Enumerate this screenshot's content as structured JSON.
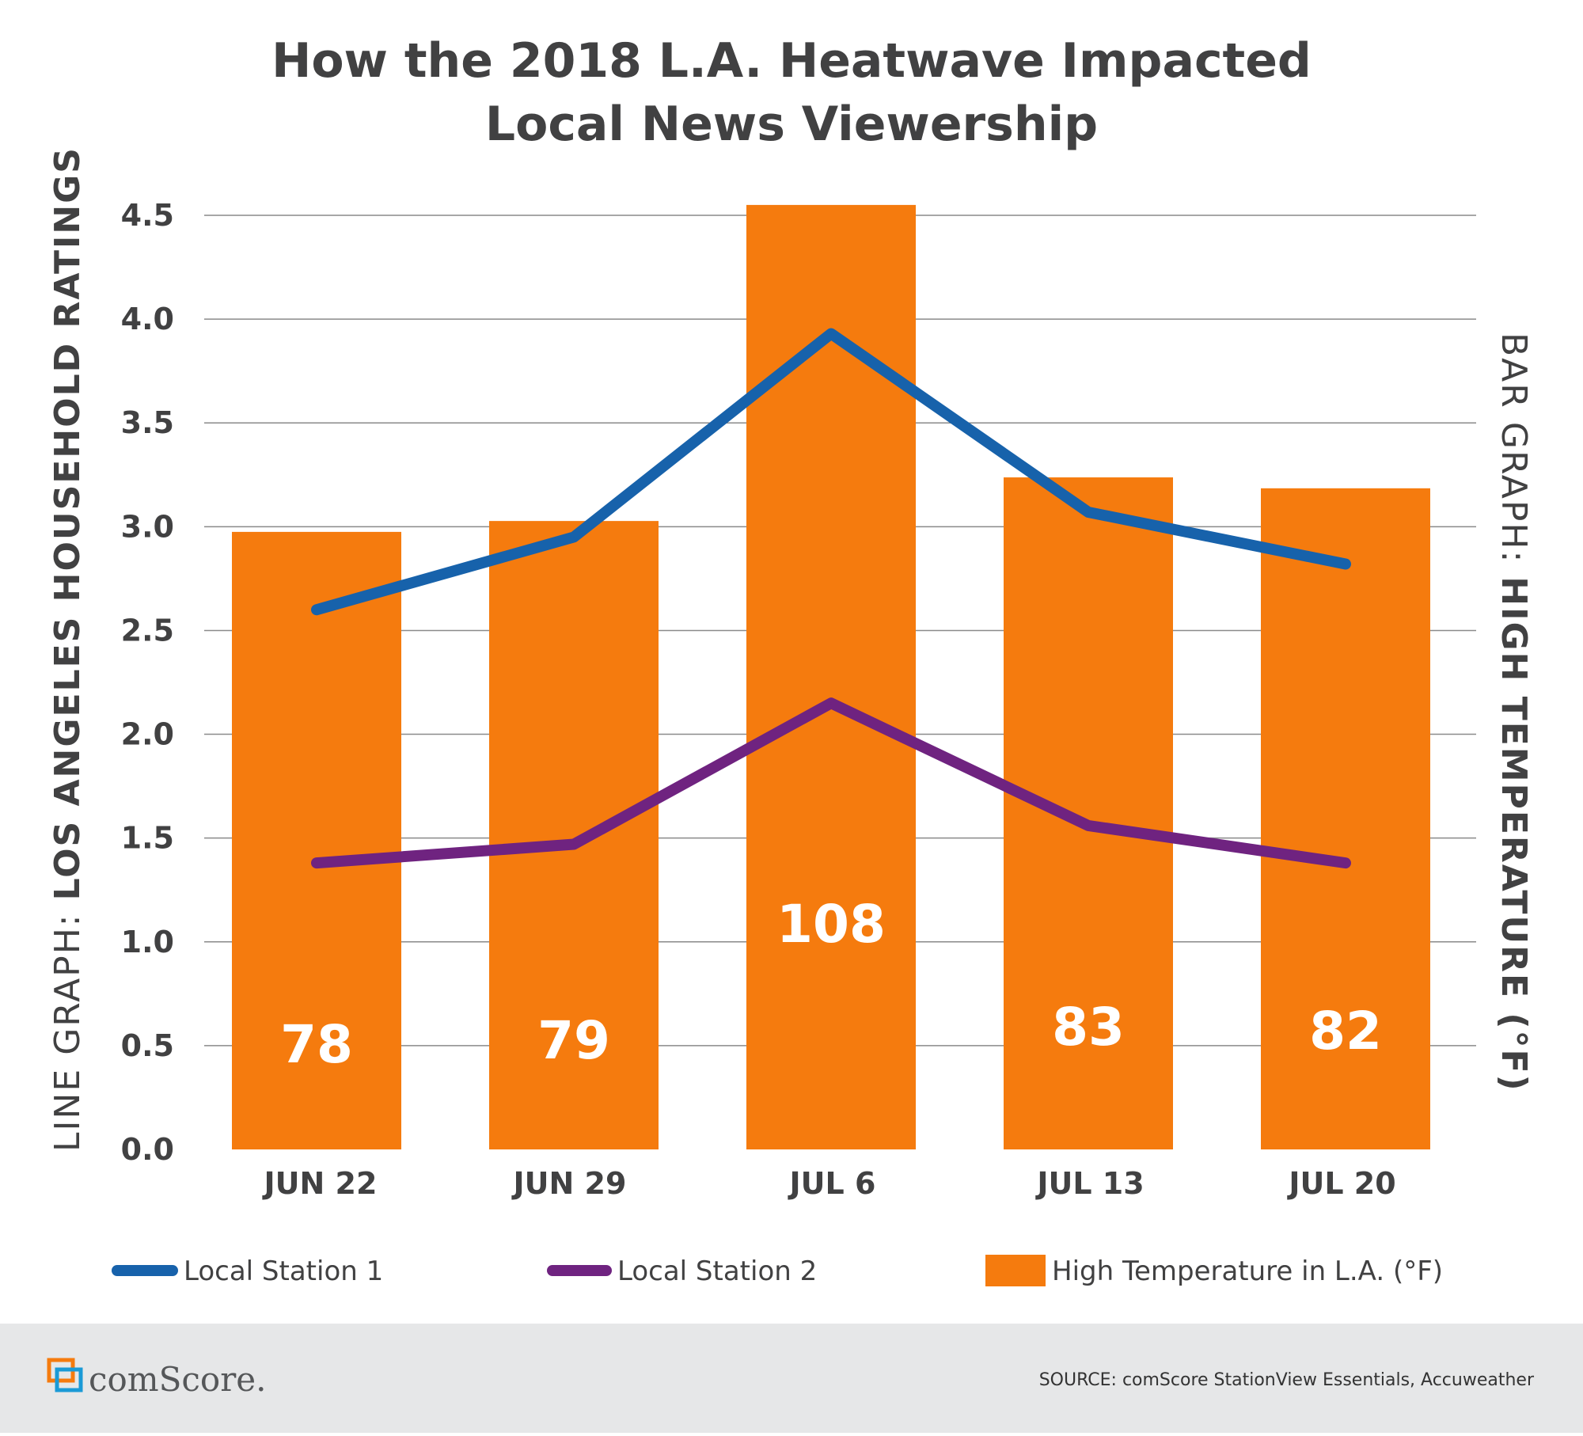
{
  "chart_data": {
    "type": "bar",
    "title_lines": [
      "How the 2018 L.A. Heatwave Impacted",
      "Local News Viewership"
    ],
    "categories": [
      "JUN 22",
      "JUN 29",
      "JUL 6",
      "JUL 13",
      "JUL 20"
    ],
    "bar_series": {
      "name": "High Temperature in L.A. (°F)",
      "values": [
        78,
        79,
        108,
        83,
        82
      ],
      "value_labels": [
        "78",
        "79",
        "108",
        "83",
        "82"
      ],
      "color": "#f57b0e"
    },
    "line_series": [
      {
        "name": "Local Station 1",
        "values": [
          2.6,
          2.95,
          3.93,
          3.07,
          2.82
        ],
        "color": "#1762ab"
      },
      {
        "name": "Local Station 2",
        "values": [
          1.38,
          1.47,
          2.15,
          1.56,
          1.38
        ],
        "color": "#6f2380"
      }
    ],
    "y_left": {
      "min": 0,
      "max": 4.5,
      "ticks": [
        "0.0",
        "0.5",
        "1.0",
        "1.5",
        "2.0",
        "2.5",
        "3.0",
        "3.5",
        "4.0",
        "4.5"
      ],
      "label_prefix": "LINE GRAPH: ",
      "label_main": "LOS ANGELES HOUSEHOLD RATINGS"
    },
    "y_right": {
      "label_prefix": "BAR GRAPH: ",
      "label_main": "HIGH TEMPERATURE (°F)"
    },
    "grid": true,
    "legend_position": "bottom"
  },
  "footer": {
    "brand": "comScore.",
    "source": "SOURCE: comScore StationView Essentials, Accuweather",
    "background": "#e6e7e8"
  }
}
